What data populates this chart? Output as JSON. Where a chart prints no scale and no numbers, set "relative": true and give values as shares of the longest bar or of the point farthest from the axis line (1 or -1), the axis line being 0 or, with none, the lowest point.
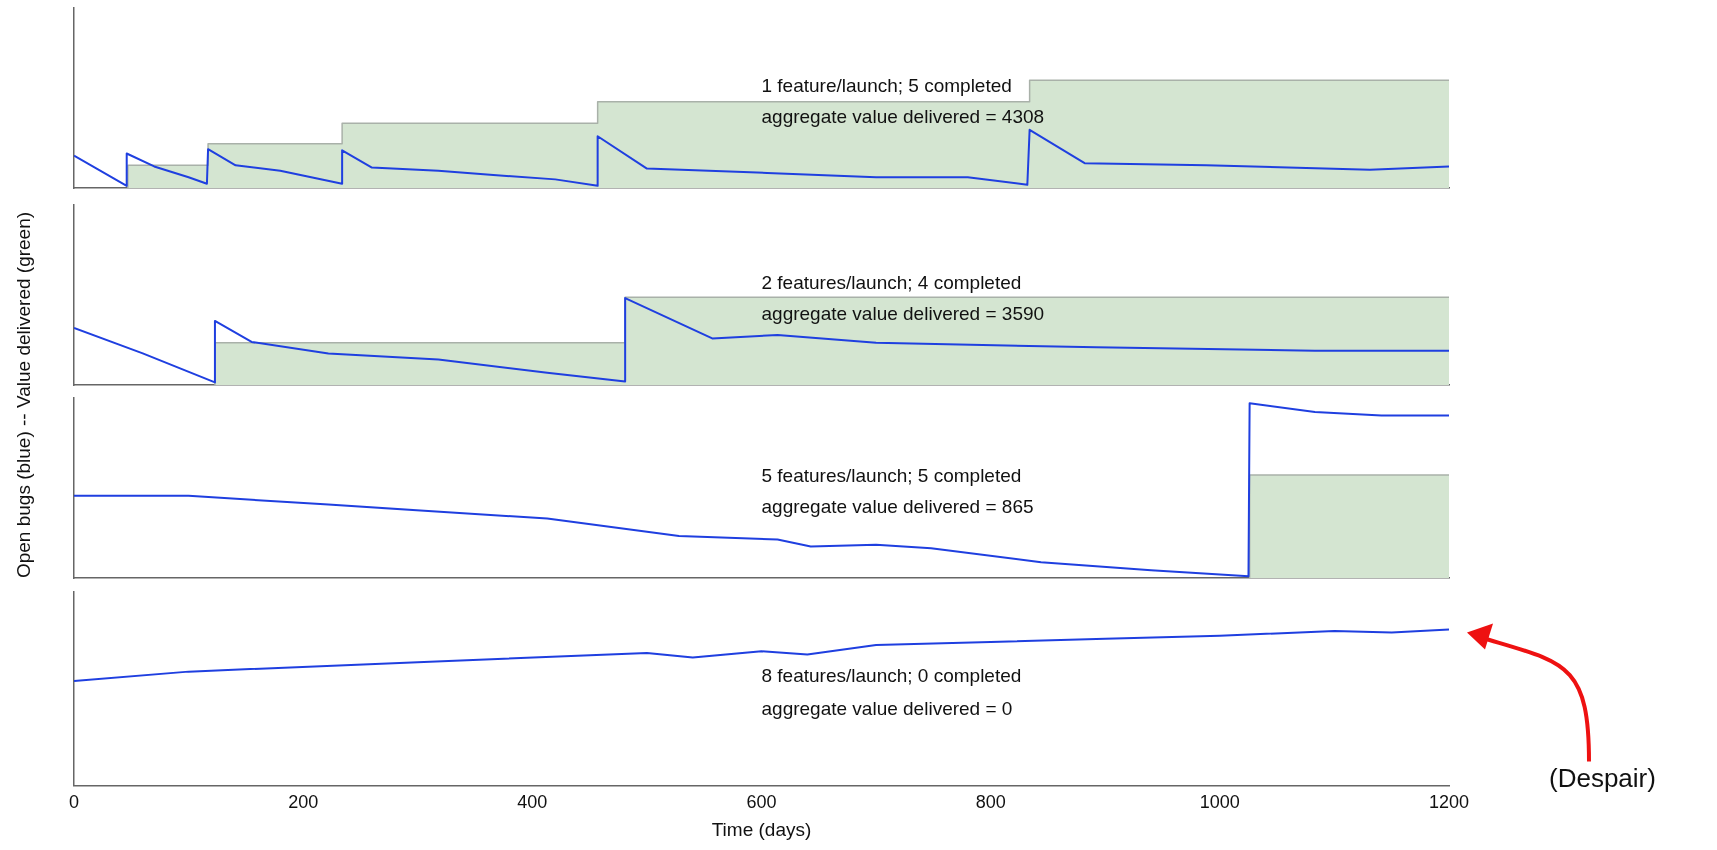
{
  "chart_data": [
    {
      "type": "line",
      "relative": true,
      "ylabel": "Open bugs (blue) -- Value delivered (green)",
      "xlim": [
        0,
        1200
      ],
      "xticks": [
        0,
        200,
        400,
        600,
        800,
        1000,
        1200
      ],
      "tick_labels": false,
      "grid": false,
      "legend": false,
      "marker": "none",
      "annotations": [
        "1 feature/launch; 5 completed",
        "aggregate value delivered = 4308"
      ],
      "series": [
        {
          "type": "area",
          "color": "#d4e5d1",
          "x": [
            47,
            47,
            117,
            117,
            234,
            234,
            457,
            457,
            834,
            834,
            1200
          ],
          "values": [
            0,
            0.21,
            0.21,
            0.41,
            0.41,
            0.6,
            0.6,
            0.8,
            0.8,
            1.0,
            1.0
          ]
        },
        {
          "type": "line",
          "color": "#1f3fe0",
          "x": [
            0,
            46,
            46,
            70,
            100,
            116,
            117,
            141,
            180,
            234,
            234,
            260,
            318,
            366,
            420,
            457,
            457,
            500,
            605,
            700,
            780,
            832,
            834,
            882,
            988,
            1131,
            1200
          ],
          "values": [
            0.3,
            0.02,
            0.32,
            0.2,
            0.1,
            0.04,
            0.36,
            0.21,
            0.16,
            0.04,
            0.35,
            0.19,
            0.16,
            0.12,
            0.08,
            0.02,
            0.48,
            0.18,
            0.14,
            0.1,
            0.1,
            0.03,
            0.54,
            0.23,
            0.21,
            0.17,
            0.2
          ]
        }
      ]
    },
    {
      "type": "line",
      "relative": true,
      "xlim": [
        0,
        1200
      ],
      "xticks": [
        0,
        200,
        400,
        600,
        800,
        1000,
        1200
      ],
      "tick_labels": false,
      "grid": false,
      "legend": false,
      "marker": "none",
      "annotations": [
        "2 features/launch; 4 completed",
        "aggregate value delivered = 3590"
      ],
      "series": [
        {
          "type": "area",
          "color": "#d4e5d1",
          "x": [
            123,
            123,
            481,
            481,
            1200
          ],
          "values": [
            0,
            0.48,
            0.48,
            1.0,
            1.0
          ]
        },
        {
          "type": "line",
          "color": "#1f3fe0",
          "x": [
            0,
            60,
            123,
            123,
            155,
            222,
            318,
            413,
            481,
            481,
            557,
            614,
            700,
            892,
            1083,
            1200
          ],
          "values": [
            0.65,
            0.36,
            0.03,
            0.73,
            0.49,
            0.36,
            0.29,
            0.14,
            0.04,
            0.99,
            0.53,
            0.57,
            0.48,
            0.43,
            0.39,
            0.39
          ]
        }
      ]
    },
    {
      "type": "line",
      "relative": true,
      "xlim": [
        0,
        1200
      ],
      "xticks": [
        0,
        200,
        400,
        600,
        800,
        1000,
        1200
      ],
      "tick_labels": false,
      "grid": false,
      "legend": false,
      "marker": "none",
      "annotations": [
        "5 features/launch; 5 completed",
        "aggregate value delivered = 865"
      ],
      "series": [
        {
          "type": "area",
          "color": "#d4e5d1",
          "x": [
            1026,
            1026,
            1200
          ],
          "values": [
            0,
            0.59,
            0.59
          ]
        },
        {
          "type": "line",
          "color": "#1f3fe0",
          "x": [
            0,
            100,
            222,
            413,
            528,
            614,
            643,
            700,
            748,
            844,
            940,
            1025,
            1026,
            1083,
            1141,
            1200
          ],
          "values": [
            0.47,
            0.47,
            0.42,
            0.34,
            0.24,
            0.22,
            0.18,
            0.19,
            0.17,
            0.09,
            0.045,
            0.01,
            1.0,
            0.95,
            0.93,
            0.93
          ]
        }
      ]
    },
    {
      "type": "line",
      "relative": true,
      "xlabel": "Time (days)",
      "xlim": [
        0,
        1200
      ],
      "xticks": [
        0,
        200,
        400,
        600,
        800,
        1000,
        1200
      ],
      "tick_labels": "x",
      "grid": false,
      "legend": false,
      "marker": "none",
      "annotations": [
        "8 features/launch; 0 completed",
        "aggregate value delivered = 0",
        "(Despair)"
      ],
      "series": [
        {
          "type": "line",
          "color": "#1f3fe0",
          "x": [
            0,
            100,
            300,
            500,
            540,
            600,
            640,
            700,
            800,
            900,
            1000,
            1100,
            1150,
            1200
          ],
          "values": [
            0.67,
            0.73,
            0.79,
            0.85,
            0.82,
            0.86,
            0.84,
            0.9,
            0.92,
            0.94,
            0.96,
            0.99,
            0.98,
            1.0
          ]
        }
      ]
    }
  ]
}
